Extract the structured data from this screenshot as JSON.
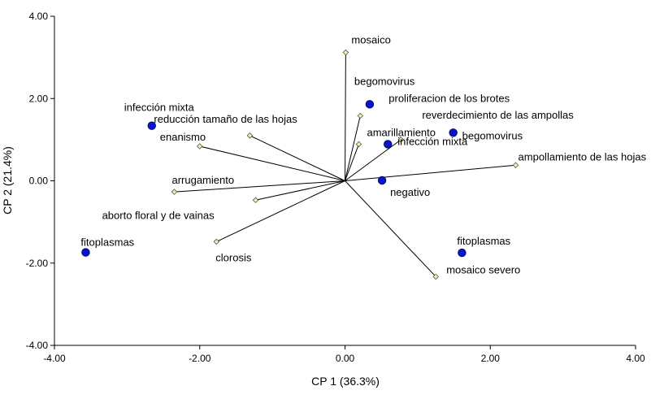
{
  "chart_data": {
    "type": "scatter",
    "subtype": "pca-biplot",
    "xlabel": "CP 1 (36.3%)",
    "ylabel": "CP 2 (21.4%)",
    "xlim": [
      -4,
      4
    ],
    "ylim": [
      -4,
      4
    ],
    "xticks": [
      "-4.00",
      "-2.00",
      "0.00",
      "2.00",
      "4.00"
    ],
    "yticks": [
      "4.00",
      "2.00",
      "0.00",
      "-2.00",
      "-4.00"
    ],
    "colors": {
      "score_point": "#0a14c8",
      "loading_point": "#f2f2a6",
      "vector": "#000000"
    },
    "score_points": [
      {
        "label": "infección mixta",
        "x": -2.66,
        "y": 1.34
      },
      {
        "label": "fitoplasmas",
        "x": -3.57,
        "y": -1.74
      },
      {
        "label": "begomovirus",
        "x": 0.34,
        "y": 1.86
      },
      {
        "label": "infección mixta",
        "x": 0.59,
        "y": 0.89
      },
      {
        "label": "negativo",
        "x": 0.51,
        "y": 0.01
      },
      {
        "label": "begomovirus",
        "x": 1.49,
        "y": 1.17
      },
      {
        "label": "fitoplasmas",
        "x": 1.61,
        "y": -1.75
      }
    ],
    "loading_vectors": [
      {
        "label": "mosaico",
        "x": 0.01,
        "y": 3.12
      },
      {
        "label": "proliferacion de los brotes",
        "x": 0.21,
        "y": 1.58
      },
      {
        "label": "amarillamiento",
        "x": 0.19,
        "y": 0.89
      },
      {
        "label": "reverdecimiento de las ampollas",
        "x": 0.77,
        "y": 1.0
      },
      {
        "label": "ampollamiento de las hojas",
        "x": 2.35,
        "y": 0.38
      },
      {
        "label": "mosaico severo",
        "x": 1.25,
        "y": -2.33
      },
      {
        "label": "reducción tamaño de las hojas",
        "x": -1.31,
        "y": 1.1
      },
      {
        "label": "enanismo",
        "x": -2.0,
        "y": 0.84
      },
      {
        "label": "arrugamiento",
        "x": -2.35,
        "y": -0.27
      },
      {
        "label": "aborto floral y de vainas",
        "x": -1.23,
        "y": -0.47
      },
      {
        "label": "clorosis",
        "x": -1.77,
        "y": -1.48
      }
    ]
  }
}
